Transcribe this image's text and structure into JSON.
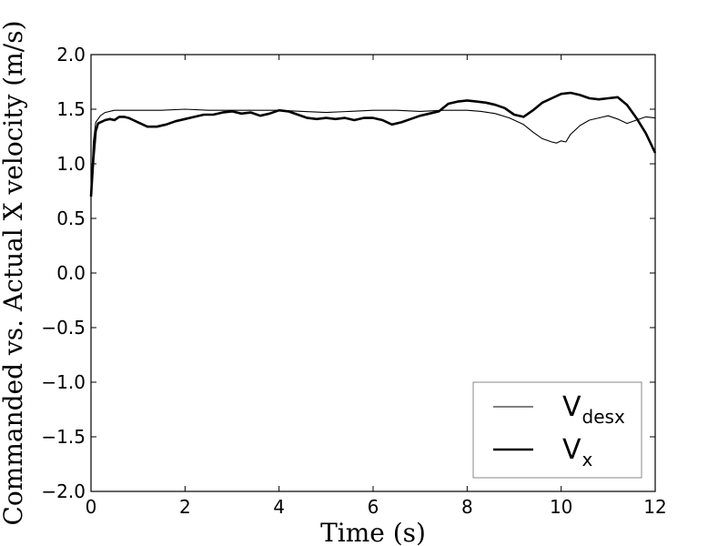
{
  "chart_data": {
    "type": "line",
    "title": "",
    "xlabel": "Time (s)",
    "ylabel": "Commanded vs. Actual X velocity (m/s)",
    "xlim": [
      0,
      12
    ],
    "ylim": [
      -2.0,
      2.0
    ],
    "xticks": [
      0,
      2,
      4,
      6,
      8,
      10,
      12
    ],
    "xtick_labels": [
      "0",
      "2",
      "4",
      "6",
      "8",
      "10",
      "12"
    ],
    "yticks": [
      -2.0,
      -1.5,
      -1.0,
      -0.5,
      0.0,
      0.5,
      1.0,
      1.5,
      2.0
    ],
    "ytick_labels": [
      "−2.0",
      "−1.5",
      "−1.0",
      "−0.5",
      "0.0",
      "0.5",
      "1.0",
      "1.5",
      "2.0"
    ],
    "grid": false,
    "legend_position": "lower-right",
    "series": [
      {
        "name": "V_desx",
        "label_main": "V",
        "label_sub": "desx",
        "color": "#000000",
        "style": "thin",
        "x": [
          0,
          0.05,
          0.1,
          0.2,
          0.3,
          0.5,
          1.0,
          1.5,
          2.0,
          2.5,
          3.0,
          3.5,
          4.0,
          4.5,
          5.0,
          5.5,
          6.0,
          6.5,
          7.0,
          7.5,
          8.0,
          8.3,
          8.6,
          8.9,
          9.2,
          9.4,
          9.6,
          9.8,
          9.9,
          10.0,
          10.1,
          10.2,
          10.4,
          10.6,
          10.8,
          11.0,
          11.2,
          11.4,
          11.6,
          11.8,
          12.0
        ],
        "y": [
          0.75,
          1.2,
          1.38,
          1.44,
          1.47,
          1.49,
          1.49,
          1.49,
          1.5,
          1.49,
          1.49,
          1.49,
          1.49,
          1.48,
          1.47,
          1.48,
          1.49,
          1.49,
          1.48,
          1.49,
          1.49,
          1.48,
          1.46,
          1.42,
          1.36,
          1.29,
          1.23,
          1.2,
          1.19,
          1.21,
          1.2,
          1.27,
          1.35,
          1.4,
          1.42,
          1.44,
          1.41,
          1.37,
          1.4,
          1.43,
          1.42
        ]
      },
      {
        "name": "V_x",
        "label_main": "V",
        "label_sub": "x",
        "color": "#000000",
        "style": "thick",
        "x": [
          0,
          0.05,
          0.1,
          0.15,
          0.2,
          0.3,
          0.4,
          0.5,
          0.6,
          0.7,
          0.8,
          0.9,
          1.0,
          1.2,
          1.4,
          1.6,
          1.8,
          2.0,
          2.2,
          2.4,
          2.6,
          2.8,
          3.0,
          3.2,
          3.4,
          3.6,
          3.8,
          4.0,
          4.2,
          4.4,
          4.6,
          4.8,
          5.0,
          5.2,
          5.4,
          5.6,
          5.8,
          6.0,
          6.2,
          6.4,
          6.6,
          6.8,
          7.0,
          7.2,
          7.4,
          7.6,
          7.8,
          8.0,
          8.2,
          8.4,
          8.6,
          8.8,
          9.0,
          9.2,
          9.4,
          9.6,
          9.8,
          10.0,
          10.2,
          10.4,
          10.6,
          10.8,
          11.0,
          11.2,
          11.4,
          11.6,
          11.8,
          12.0
        ],
        "y": [
          0.7,
          1.05,
          1.3,
          1.37,
          1.38,
          1.4,
          1.41,
          1.4,
          1.43,
          1.43,
          1.42,
          1.4,
          1.38,
          1.34,
          1.34,
          1.36,
          1.39,
          1.41,
          1.43,
          1.45,
          1.45,
          1.47,
          1.48,
          1.46,
          1.47,
          1.44,
          1.46,
          1.49,
          1.48,
          1.45,
          1.42,
          1.41,
          1.42,
          1.41,
          1.42,
          1.4,
          1.42,
          1.42,
          1.4,
          1.36,
          1.38,
          1.41,
          1.44,
          1.46,
          1.48,
          1.55,
          1.57,
          1.58,
          1.57,
          1.56,
          1.54,
          1.51,
          1.45,
          1.43,
          1.49,
          1.56,
          1.6,
          1.64,
          1.65,
          1.63,
          1.6,
          1.59,
          1.6,
          1.61,
          1.54,
          1.42,
          1.28,
          1.1
        ]
      }
    ]
  }
}
